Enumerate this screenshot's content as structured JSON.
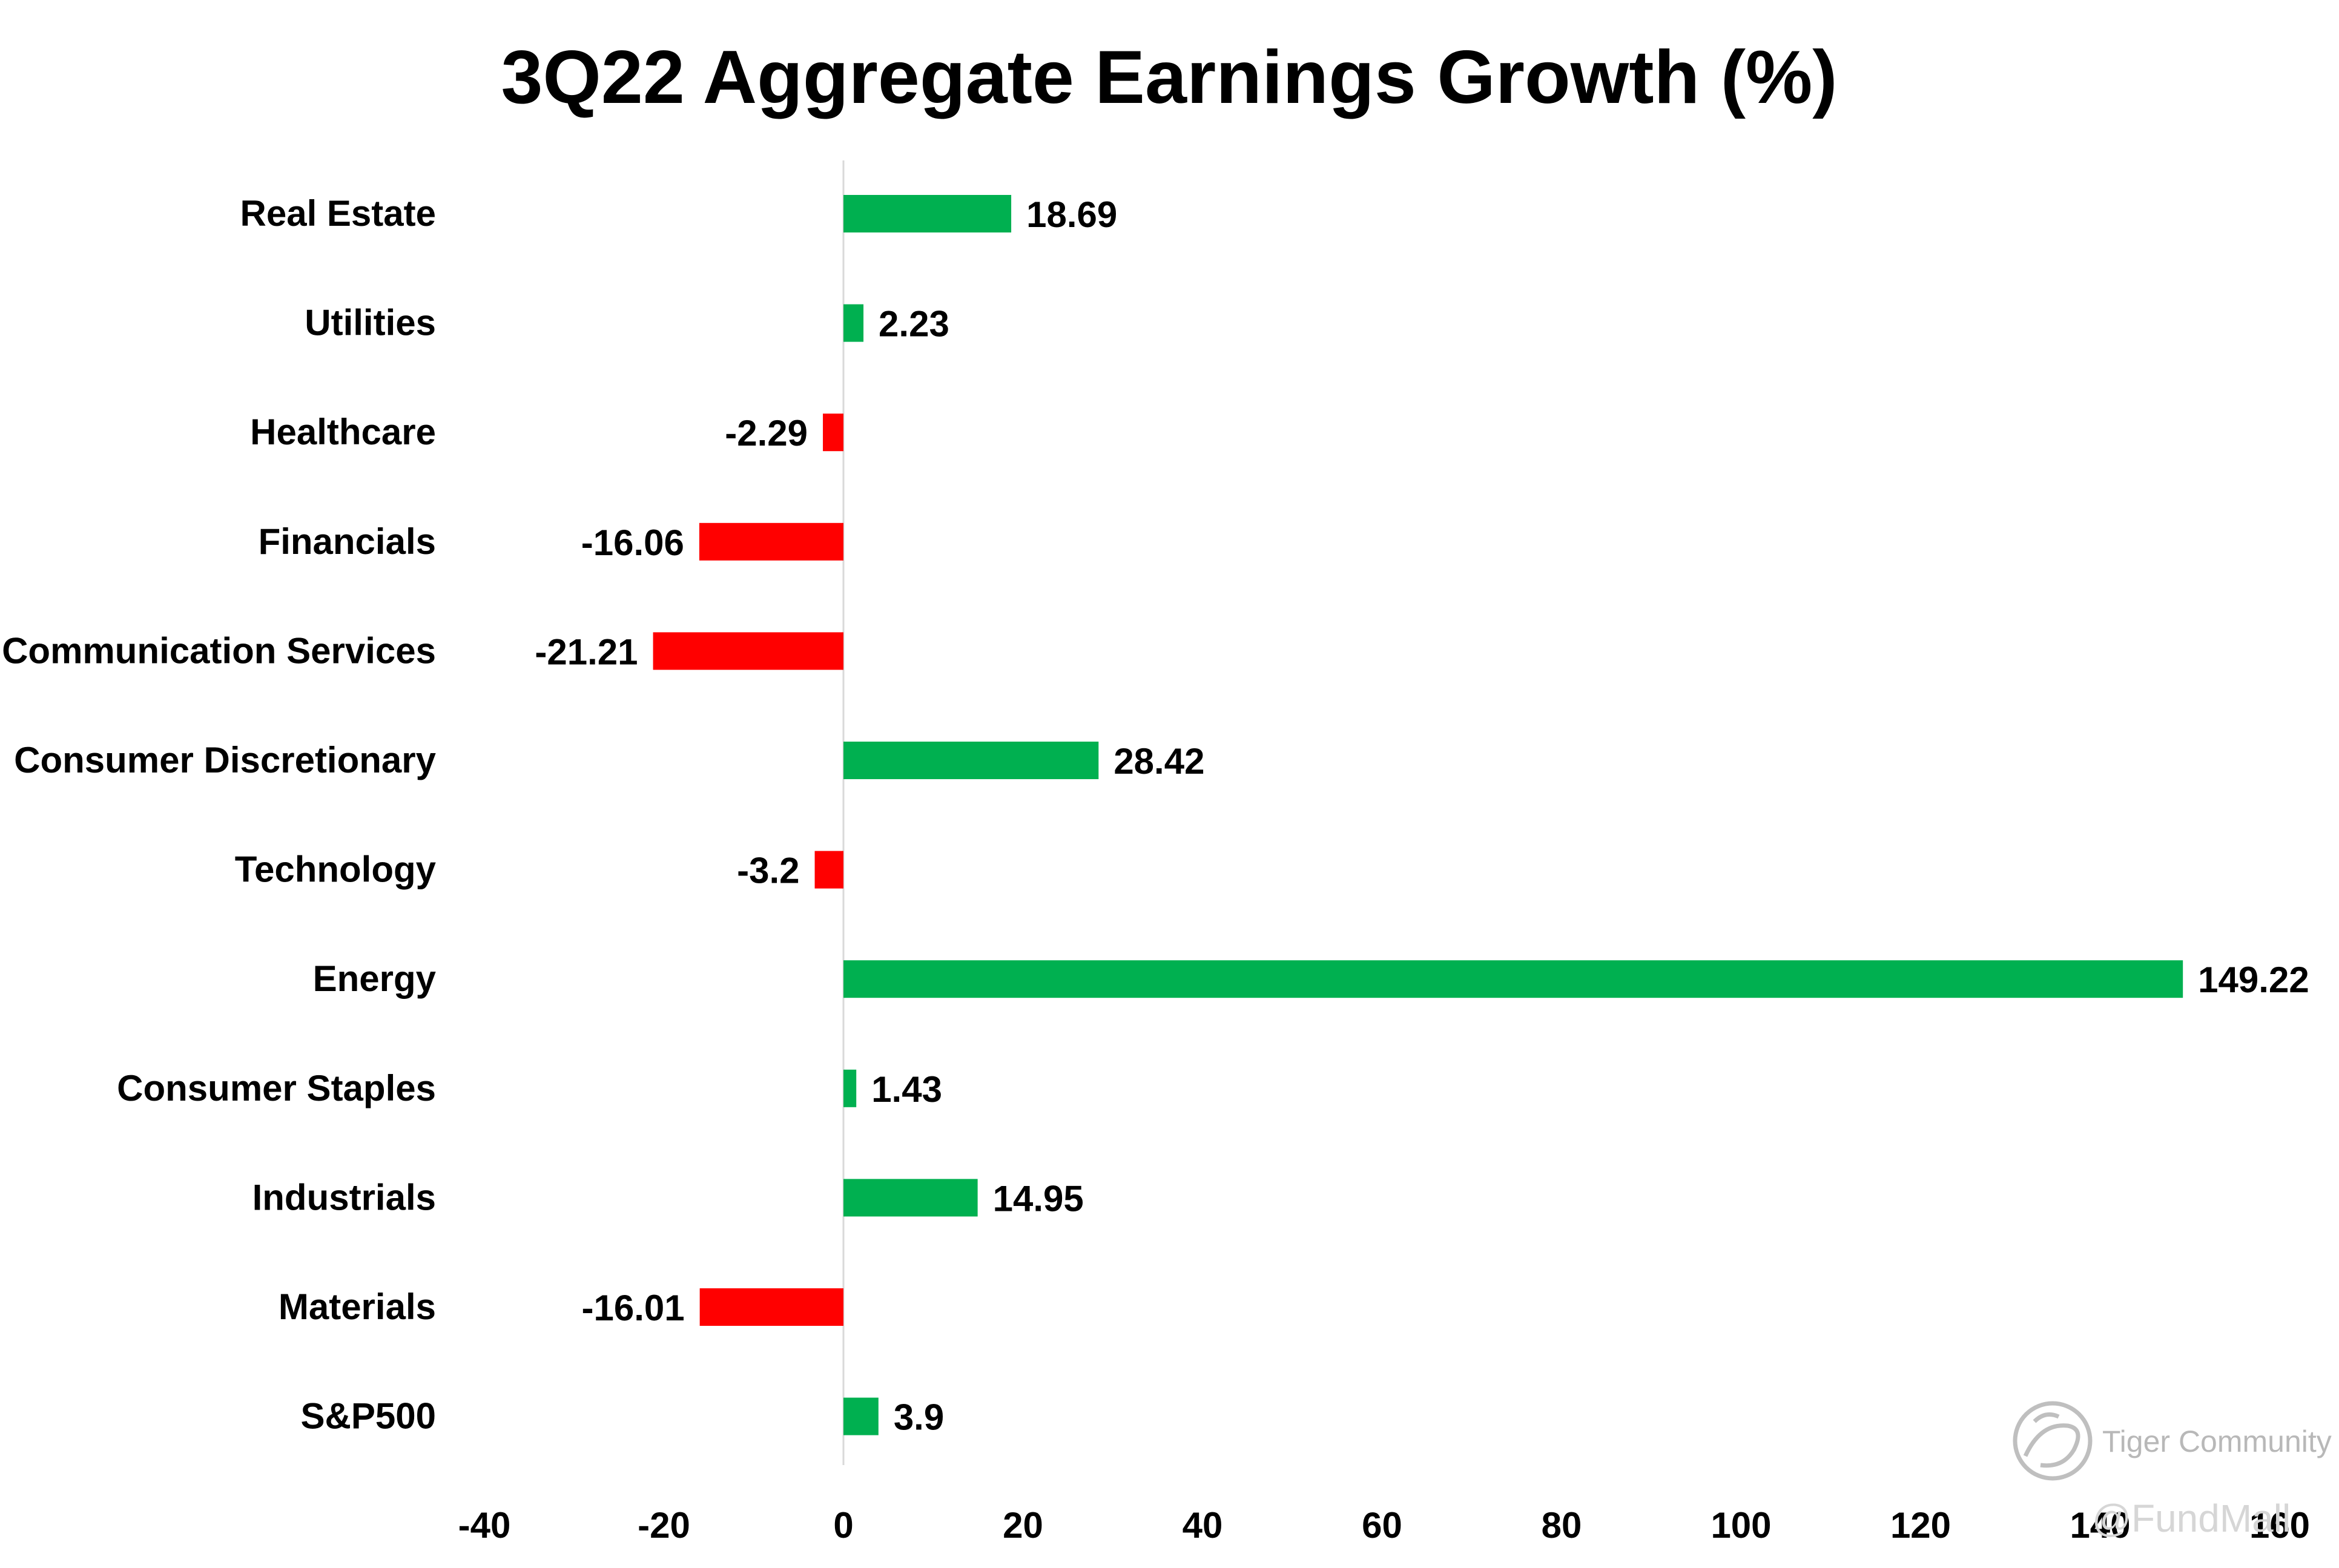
{
  "chart_data": {
    "type": "bar",
    "orientation": "horizontal",
    "title": "3Q22 Aggregate Earnings Growth (%)",
    "xlabel": "",
    "ylabel": "",
    "xlim": [
      -40,
      160
    ],
    "x_ticks": [
      -40,
      -20,
      0,
      20,
      40,
      60,
      80,
      100,
      120,
      140,
      160
    ],
    "categories": [
      "Real Estate",
      "Utilities",
      "Healthcare",
      "Financials",
      "Communication Services",
      "Consumer Discretionary",
      "Technology",
      "Energy",
      "Consumer Staples",
      "Industrials",
      "Materials",
      "S&P500"
    ],
    "values": [
      18.69,
      2.23,
      -2.29,
      -16.06,
      -21.21,
      28.42,
      -3.2,
      149.22,
      1.43,
      14.95,
      -16.01,
      3.9
    ],
    "value_labels": [
      "18.69",
      "2.23",
      "-2.29",
      "-16.06",
      "-21.21",
      "28.42",
      "-3.2",
      "149.22",
      "1.43",
      "14.95",
      "-16.01",
      "3.9"
    ],
    "positive_color": "#00b050",
    "negative_color": "#ff0000",
    "grid": false,
    "legend": "none"
  },
  "watermark": {
    "text": "Tiger Community",
    "text2": "@FundMall",
    "color": "#b8b8b8"
  }
}
